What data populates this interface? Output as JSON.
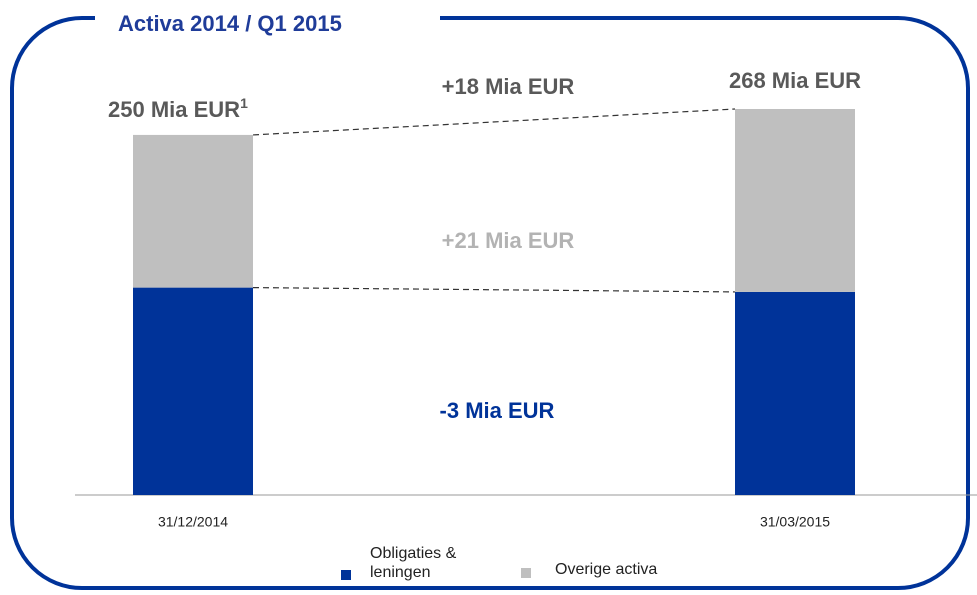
{
  "chart_data": {
    "type": "stacked_bar",
    "title": "Activa 2014 / Q1 2015",
    "categories": [
      "31/12/2014",
      "31/03/2015"
    ],
    "series": [
      {
        "name": "Obligaties & leningen",
        "color": "#003399",
        "values": [
          144,
          141
        ]
      },
      {
        "name": "Overige activa",
        "color": "#bfbfbf",
        "values": [
          106,
          127
        ]
      }
    ],
    "ylim": [
      0,
      268
    ],
    "total_labels": [
      "250 Mia EUR",
      "268 Mia EUR"
    ],
    "footnote_mark": "1",
    "change_labels": [
      "+18 Mia EUR",
      "+21 Mia EUR",
      "-3 Mia EUR"
    ]
  }
}
